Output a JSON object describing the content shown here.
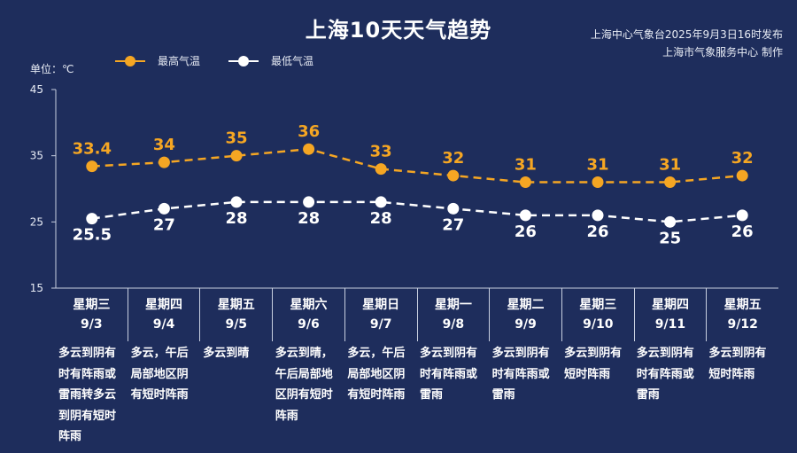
{
  "header": {
    "title": "上海10天天气趋势",
    "publisher_line1": "上海中心气象台2025年9月3日16时发布",
    "publisher_line2": "上海市气象服务中心 制作"
  },
  "unit_label": "单位：℃",
  "colors": {
    "background": "#1e2d5c",
    "high": "#f5a623",
    "low": "#ffffff"
  },
  "chart_data": {
    "type": "line",
    "categories": [
      "9/3",
      "9/4",
      "9/5",
      "9/6",
      "9/7",
      "9/8",
      "9/9",
      "9/10",
      "9/11",
      "9/12"
    ],
    "series": [
      {
        "name": "最高气温",
        "values": [
          33.4,
          34,
          35,
          36,
          33,
          32,
          31,
          31,
          31,
          32
        ],
        "labels": [
          "33.4",
          "34",
          "35",
          "36",
          "33",
          "32",
          "31",
          "31",
          "31",
          "32"
        ],
        "color": "#f5a623",
        "dashed": true
      },
      {
        "name": "最低气温",
        "values": [
          25.5,
          27,
          28,
          28,
          28,
          27,
          26,
          26,
          25,
          26
        ],
        "labels": [
          "25.5",
          "27",
          "28",
          "28",
          "28",
          "27",
          "26",
          "26",
          "25",
          "26"
        ],
        "color": "#ffffff",
        "dashed": true
      }
    ],
    "yticks": [
      "15",
      "25",
      "35",
      "45"
    ],
    "ylim": [
      15,
      45
    ],
    "grid": false,
    "legend_position": "top-left"
  },
  "days": [
    {
      "weekday": "星期三",
      "date": "9/3",
      "desc": "多云到阴有时有阵雨或雷雨转多云到阴有短时阵雨"
    },
    {
      "weekday": "星期四",
      "date": "9/4",
      "desc": "多云，午后局部地区阴有短时阵雨"
    },
    {
      "weekday": "星期五",
      "date": "9/5",
      "desc": "多云到晴"
    },
    {
      "weekday": "星期六",
      "date": "9/6",
      "desc": "多云到晴，午后局部地区阴有短时阵雨"
    },
    {
      "weekday": "星期日",
      "date": "9/7",
      "desc": "多云，午后局部地区阴有短时阵雨"
    },
    {
      "weekday": "星期一",
      "date": "9/8",
      "desc": "多云到阴有时有阵雨或雷雨"
    },
    {
      "weekday": "星期二",
      "date": "9/9",
      "desc": "多云到阴有时有阵雨或雷雨"
    },
    {
      "weekday": "星期三",
      "date": "9/10",
      "desc": "多云到阴有短时阵雨"
    },
    {
      "weekday": "星期四",
      "date": "9/11",
      "desc": "多云到阴有时有阵雨或雷雨"
    },
    {
      "weekday": "星期五",
      "date": "9/12",
      "desc": "多云到阴有短时阵雨"
    }
  ]
}
